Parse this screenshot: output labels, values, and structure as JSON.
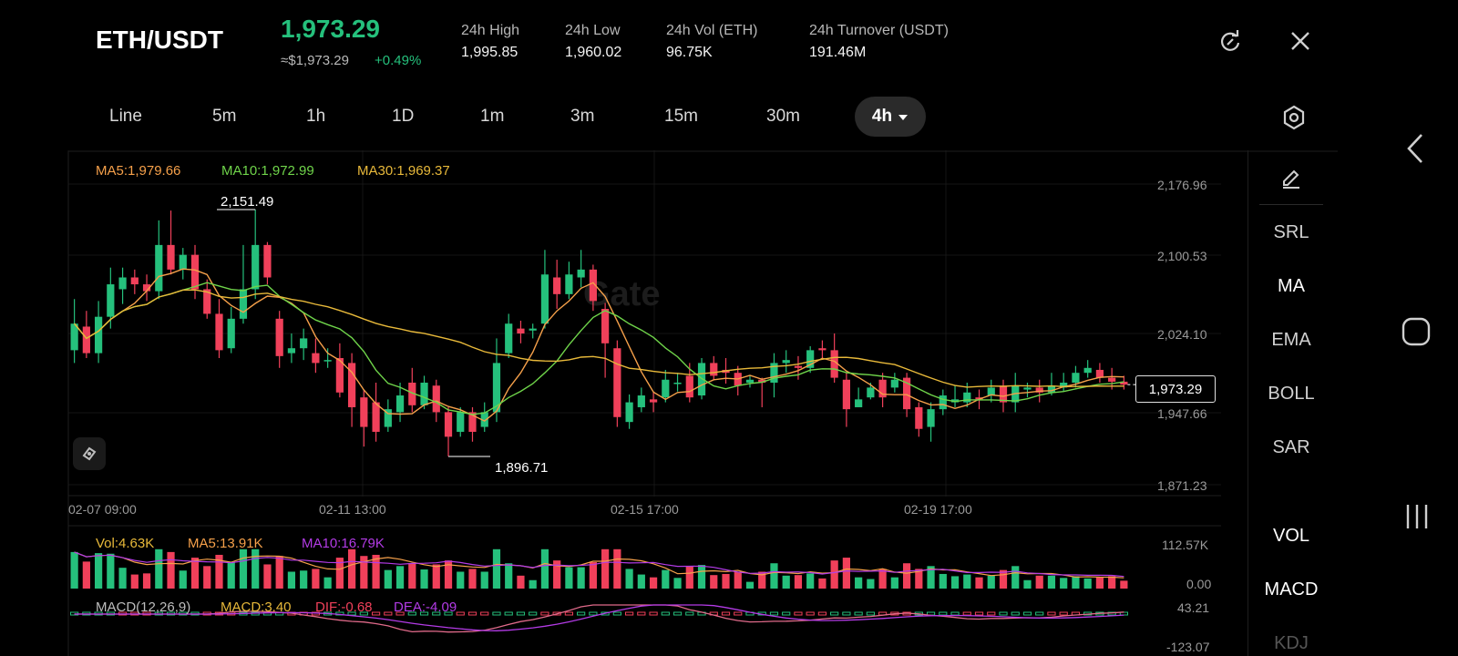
{
  "header": {
    "pair": "ETH/USDT",
    "last_price": "1,973.29",
    "approx_usd": "≈$1,973.29",
    "change_pct": "+0.49%",
    "stats": [
      {
        "label": "24h  High",
        "value": "1,995.85"
      },
      {
        "label": "24h  Low",
        "value": "1,960.02"
      },
      {
        "label": "24h  Vol (ETH)",
        "value": "96.75K"
      },
      {
        "label": "24h  Turnover (USDT)",
        "value": "191.46M"
      }
    ]
  },
  "timeframes": [
    "Line",
    "5m",
    "1h",
    "1D",
    "1m",
    "3m",
    "15m",
    "30m"
  ],
  "active_timeframe": "4h",
  "indicators": [
    "SRL",
    "MA",
    "EMA",
    "BOLL",
    "SAR"
  ],
  "sub_indicators": [
    "VOL",
    "MACD",
    "KDJ"
  ],
  "main_legend": {
    "ma5": "MA5:1,979.66",
    "ma10": "MA10:1,972.99",
    "ma30": "MA30:1,969.37"
  },
  "price_axis": [
    "2,176.96",
    "2,100.53",
    "2,024.10",
    "1,947.66",
    "1,871.23"
  ],
  "time_axis": [
    "02-07 09:00",
    "02-11 13:00",
    "02-15 17:00",
    "02-19 17:00"
  ],
  "high_marker": "2,151.49",
  "low_marker": "1,896.71",
  "last_price_tag": "1,973.29",
  "vol_legend": {
    "vol": "Vol:4.63K",
    "ma5": "MA5:13.91K",
    "ma10": "MA10:16.79K"
  },
  "vol_axis": [
    "112.57K",
    "0.00"
  ],
  "macd_legend": {
    "macd_label": "MACD(12,26,9)",
    "macd": "MACD:3.40",
    "dif": "DIF:-0.68",
    "dea": "DEA:-4.09"
  },
  "macd_axis": [
    "43.21",
    "-123.07"
  ],
  "colors": {
    "up": "#25c07c",
    "down": "#f0405a",
    "ma5": "#f5a04a",
    "ma10": "#6fd44a",
    "ma30": "#e8b93a",
    "purple": "#b33be6"
  },
  "icons": {
    "refresh": "refresh-icon",
    "close": "close-icon",
    "settings": "hexagon-settings-icon",
    "draw": "pencil-icon"
  },
  "chart_data": {
    "type": "candlestick",
    "title": "",
    "candles_ohlc": [
      [
        2008,
        2035,
        1995,
        2060
      ],
      [
        2032,
        2005,
        2000,
        2048
      ],
      [
        2005,
        2042,
        1995,
        2058
      ],
      [
        2042,
        2075,
        2030,
        2092
      ],
      [
        2070,
        2082,
        2055,
        2092
      ],
      [
        2082,
        2075,
        2065,
        2090
      ],
      [
        2075,
        2068,
        2058,
        2085
      ],
      [
        2068,
        2115,
        2060,
        2140
      ],
      [
        2115,
        2090,
        2085,
        2150
      ],
      [
        2090,
        2105,
        2080,
        2112
      ],
      [
        2105,
        2070,
        2060,
        2115
      ],
      [
        2070,
        2045,
        2040,
        2080
      ],
      [
        2045,
        2008,
        2000,
        2060
      ],
      [
        2010,
        2040,
        2005,
        2052
      ],
      [
        2040,
        2070,
        2035,
        2115
      ],
      [
        2070,
        2115,
        2060,
        2151
      ],
      [
        2115,
        2082,
        2075,
        2118
      ],
      [
        2040,
        2002,
        1990,
        2048
      ],
      [
        2005,
        2010,
        1995,
        2025
      ],
      [
        2010,
        2020,
        1998,
        2030
      ],
      [
        2005,
        1995,
        1985,
        2020
      ],
      [
        1998,
        1998,
        1990,
        2010
      ],
      [
        2000,
        1965,
        1960,
        2015
      ],
      [
        1995,
        1950,
        1930,
        2005
      ],
      [
        1960,
        1930,
        1910,
        1968
      ],
      [
        1955,
        1925,
        1915,
        1975
      ],
      [
        1930,
        1948,
        1925,
        1958
      ],
      [
        1945,
        1962,
        1935,
        1975
      ],
      [
        1975,
        1952,
        1945,
        1990
      ],
      [
        1952,
        1975,
        1948,
        1982
      ],
      [
        1972,
        1945,
        1935,
        1978
      ],
      [
        1945,
        1920,
        1900,
        1950
      ],
      [
        1925,
        1945,
        1920,
        1950
      ],
      [
        1945,
        1925,
        1915,
        1950
      ],
      [
        1930,
        1945,
        1925,
        1955
      ],
      [
        1945,
        1995,
        1935,
        2020
      ],
      [
        2005,
        2035,
        2000,
        2045
      ],
      [
        2030,
        2025,
        2015,
        2038
      ],
      [
        2028,
        2030,
        2020,
        2035
      ],
      [
        2035,
        2085,
        2030,
        2110
      ],
      [
        2082,
        2065,
        2050,
        2100
      ],
      [
        2065,
        2085,
        2060,
        2098
      ],
      [
        2082,
        2090,
        2072,
        2110
      ],
      [
        2090,
        2058,
        2048,
        2095
      ],
      [
        2050,
        2015,
        1980,
        2056
      ],
      [
        2010,
        1940,
        1930,
        2018
      ],
      [
        1935,
        1955,
        1928,
        1963
      ],
      [
        1950,
        1962,
        1945,
        1970
      ],
      [
        1958,
        1955,
        1945,
        1965
      ],
      [
        1960,
        1978,
        1955,
        1988
      ],
      [
        1975,
        1975,
        1966,
        1985
      ],
      [
        1982,
        1960,
        1955,
        1995
      ],
      [
        1962,
        1995,
        1958,
        2000
      ],
      [
        1995,
        1982,
        1978,
        2002
      ],
      [
        1988,
        1985,
        1974,
        2000
      ],
      [
        1985,
        1972,
        1962,
        1992
      ],
      [
        1975,
        1978,
        1970,
        1982
      ],
      [
        1978,
        1975,
        1950,
        1980
      ],
      [
        1975,
        1995,
        1960,
        2005
      ],
      [
        1995,
        1998,
        1985,
        2008
      ],
      [
        1992,
        1990,
        1978,
        2002
      ],
      [
        1990,
        2008,
        1985,
        2012
      ],
      [
        2010,
        2008,
        2000,
        2018
      ],
      [
        2008,
        1980,
        1975,
        2025
      ],
      [
        1978,
        1948,
        1930,
        1985
      ],
      [
        1950,
        1958,
        1950,
        1970
      ],
      [
        1960,
        1970,
        1958,
        1975
      ],
      [
        1978,
        1960,
        1950,
        1985
      ],
      [
        1970,
        1978,
        1965,
        1985
      ],
      [
        1980,
        1948,
        1940,
        1985
      ],
      [
        1950,
        1928,
        1920,
        1955
      ],
      [
        1930,
        1948,
        1915,
        1955
      ],
      [
        1948,
        1962,
        1942,
        1968
      ],
      [
        1955,
        1958,
        1950,
        1972
      ],
      [
        1955,
        1965,
        1950,
        1975
      ],
      [
        1960,
        1958,
        1948,
        1968
      ],
      [
        1962,
        1970,
        1955,
        1978
      ],
      [
        1972,
        1955,
        1945,
        1978
      ],
      [
        1955,
        1972,
        1945,
        1985
      ],
      [
        1968,
        1970,
        1960,
        1975
      ],
      [
        1970,
        1965,
        1955,
        1978
      ],
      [
        1965,
        1972,
        1962,
        1985
      ],
      [
        1970,
        1975,
        1966,
        1985
      ],
      [
        1975,
        1985,
        1970,
        1992
      ],
      [
        1985,
        1990,
        1980,
        1998
      ],
      [
        1988,
        1980,
        1975,
        1995
      ],
      [
        1980,
        1976,
        1968,
        1990
      ],
      [
        1976,
        1973,
        1968,
        1982
      ]
    ],
    "x_labels": [
      "02-07 09:00",
      "02-11 13:00",
      "02-15 17:00",
      "02-19 17:00"
    ],
    "ylim": [
      1871.23,
      2176.96
    ],
    "grid": true
  }
}
